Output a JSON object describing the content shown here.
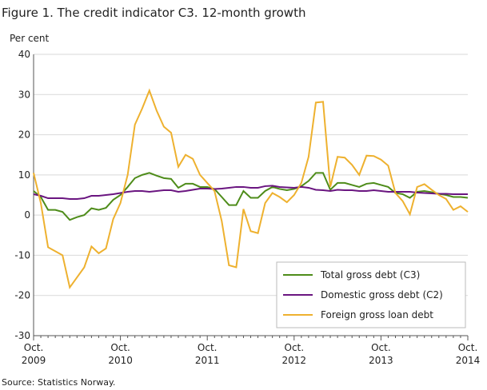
{
  "chart_data": {
    "type": "line",
    "title": "Figure 1. The credit indicator C3. 12-month growth",
    "y_label": "Per cent",
    "source": "Source: Statistics Norway.",
    "categories": [
      "Oct. 2009",
      null,
      null,
      null,
      null,
      null,
      null,
      null,
      null,
      null,
      null,
      null,
      "Oct. 2010",
      null,
      null,
      null,
      null,
      null,
      null,
      null,
      null,
      null,
      null,
      null,
      "Oct. 2011",
      null,
      null,
      null,
      null,
      null,
      null,
      null,
      null,
      null,
      null,
      null,
      "Oct. 2012",
      null,
      null,
      null,
      null,
      null,
      null,
      null,
      null,
      null,
      null,
      null,
      "Oct. 2013",
      null,
      null,
      null,
      null,
      null,
      null,
      null,
      null,
      null,
      null,
      null,
      "Oct. 2014"
    ],
    "series": [
      {
        "name": "Total gross debt (C3)",
        "color": "#4e8c1a",
        "values": [
          6,
          4.5,
          1.3,
          1.3,
          0.8,
          -1.2,
          -0.5,
          0,
          1.7,
          1.3,
          1.8,
          3.8,
          5,
          7,
          9.2,
          10,
          10.5,
          9.8,
          9.2,
          9,
          6.8,
          7.8,
          7.8,
          7,
          7,
          6.5,
          4.5,
          2.5,
          2.5,
          6,
          4.3,
          4.3,
          6,
          7,
          6.5,
          6.2,
          6.5,
          7.2,
          8.5,
          10.5,
          10.5,
          6.3,
          8,
          8,
          7.5,
          7,
          7.8,
          8,
          7.5,
          7,
          5.5,
          5.2,
          4.3,
          5.8,
          6,
          5.7,
          5.3,
          5,
          4.5,
          4.5,
          4.3
        ]
      },
      {
        "name": "Domestic gross debt (C2)",
        "color": "#6a1580",
        "values": [
          5.2,
          4.8,
          4.2,
          4.2,
          4.2,
          4,
          4,
          4.2,
          4.8,
          4.8,
          5,
          5.2,
          5.5,
          5.8,
          6,
          6,
          5.8,
          6,
          6.2,
          6.2,
          5.8,
          6,
          6.3,
          6.6,
          6.6,
          6.5,
          6.6,
          6.8,
          7,
          7,
          6.8,
          6.8,
          7.2,
          7.3,
          7,
          6.9,
          6.8,
          7,
          6.8,
          6.3,
          6.2,
          6,
          6.3,
          6.2,
          6.2,
          6,
          6,
          6.2,
          6,
          5.8,
          5.8,
          5.8,
          5.8,
          5.6,
          5.5,
          5.4,
          5.3,
          5.3,
          5.2,
          5.2,
          5.2
        ]
      },
      {
        "name": "Foreign gross loan debt",
        "color": "#eeb12f",
        "values": [
          10.5,
          3,
          -8,
          -9,
          -10,
          -18,
          -15.5,
          -13,
          -7.8,
          -9.5,
          -8.3,
          -1,
          3,
          10,
          22.5,
          26.5,
          31,
          26,
          22,
          20.5,
          12,
          15,
          14,
          10,
          8,
          6,
          -1.5,
          -12.5,
          -13,
          1.5,
          -4,
          -4.5,
          3,
          5.5,
          4.5,
          3.2,
          5,
          8,
          14.5,
          28,
          28.2,
          7,
          14.5,
          14.3,
          12.5,
          10,
          14.8,
          14.7,
          13.8,
          12.3,
          5.5,
          3.5,
          0.2,
          7,
          7.7,
          6.3,
          5,
          4,
          1.3,
          2.2,
          0.8
        ]
      }
    ],
    "ylim": [
      -30,
      40
    ],
    "yticks": [
      -30,
      -20,
      -10,
      0,
      10,
      20,
      30,
      40
    ],
    "grid": true,
    "legend": "bottom-right"
  }
}
